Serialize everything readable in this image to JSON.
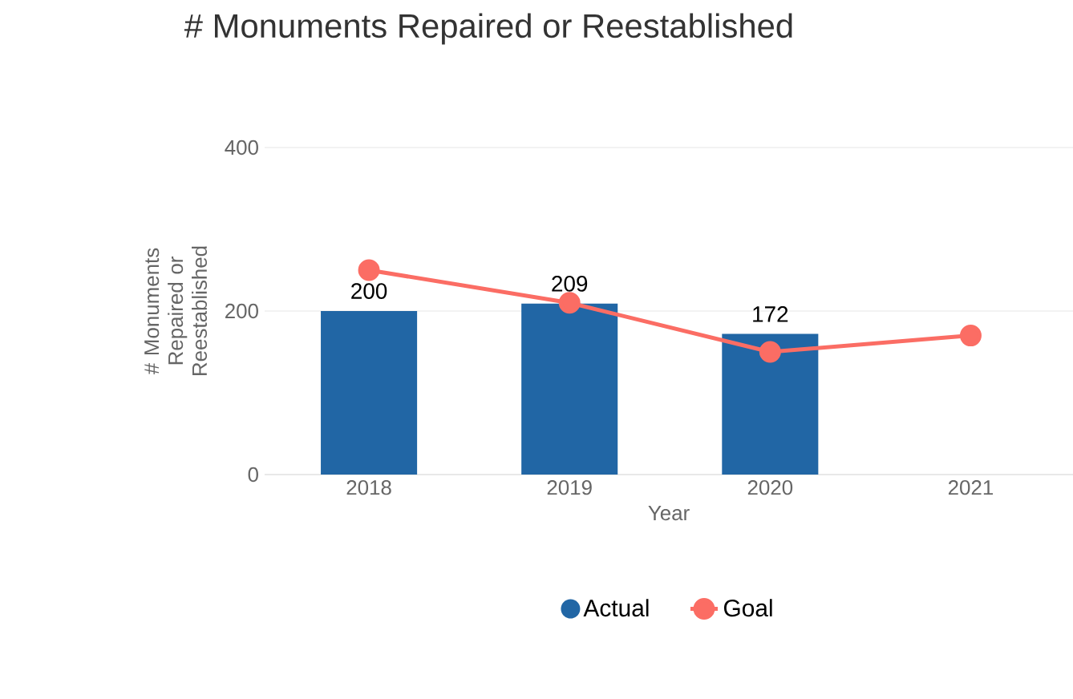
{
  "chart_data": {
    "type": "bar",
    "title": "# Monuments Repaired or Reestablished",
    "xlabel": "Year",
    "ylabel": "# Monuments Repaired or Reestablished",
    "categories": [
      "2018",
      "2019",
      "2020",
      "2021"
    ],
    "series": [
      {
        "name": "Actual",
        "color": "#2166a5",
        "values": [
          200,
          209,
          172,
          null
        ],
        "value_labels": [
          "200",
          "209",
          "172",
          null
        ]
      },
      {
        "name": "Goal",
        "type": "line",
        "color": "#fb6d64",
        "marker": "circle",
        "values": [
          250,
          210,
          150,
          170
        ]
      }
    ],
    "ylim": [
      0,
      400
    ],
    "yticks": [
      0,
      200,
      400
    ],
    "grid": "y",
    "legend": "bottom"
  }
}
